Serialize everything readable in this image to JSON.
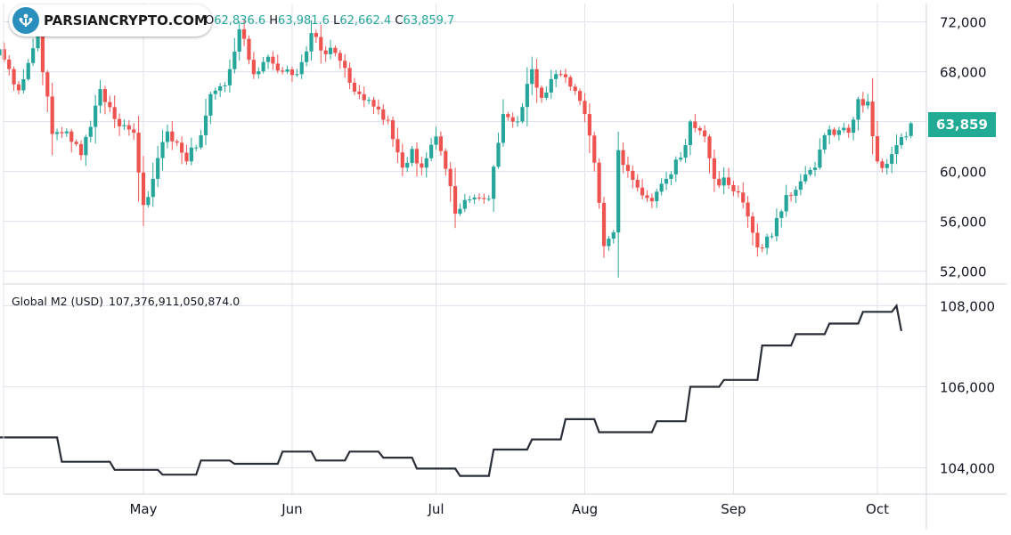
{
  "watermark": {
    "text": "PARSIANCRYPTO.COM"
  },
  "ohlc": {
    "open_label": "O",
    "open": "62,836.6",
    "high_label": "H",
    "high": "63,981.6",
    "low_label": "L",
    "low": "62,662.4",
    "close_label": "C",
    "close": "63,859.7"
  },
  "last_price_tag": "63,859",
  "m2_legend": {
    "name": "Global M2 (USD)",
    "value": "107,376,911,050,874.0"
  },
  "colors": {
    "up": "#26a69a",
    "down": "#ef5350",
    "m2_line": "#2a2e39",
    "grid": "#e0e3eb",
    "price_tag": "#22ab94"
  },
  "chart_data": [
    {
      "type": "candlestick",
      "x_tick_labels": [
        "May",
        "Jun",
        "Jul",
        "Aug",
        "Sep",
        "Oct"
      ],
      "y_tick_labels": [
        "72,000",
        "68,000",
        "64,000",
        "60,000",
        "56,000",
        "52,000"
      ],
      "ylim": [
        51000,
        74000
      ],
      "grid": true,
      "keypoints": [
        [
          "Apr 01",
          69800
        ],
        [
          "Apr 05",
          66500
        ],
        [
          "Apr 09",
          71000
        ],
        [
          "Apr 12",
          63000
        ],
        [
          "Apr 15",
          63200
        ],
        [
          "Apr 18",
          61300
        ],
        [
          "Apr 22",
          66600
        ],
        [
          "Apr 25",
          64200
        ],
        [
          "Apr 29",
          63100
        ],
        [
          "May 01",
          57300
        ],
        [
          "May 03",
          59400
        ],
        [
          "May 06",
          63200
        ],
        [
          "May 08",
          62300
        ],
        [
          "May 10",
          60800
        ],
        [
          "May 13",
          62900
        ],
        [
          "May 15",
          66200
        ],
        [
          "May 18",
          66900
        ],
        [
          "May 21",
          71400
        ],
        [
          "May 24",
          67800
        ],
        [
          "May 27",
          69200
        ],
        [
          "May 30",
          68000
        ],
        [
          "Jun 02",
          67800
        ],
        [
          "Jun 05",
          71100
        ],
        [
          "Jun 07",
          69700
        ],
        [
          "Jun 10",
          69500
        ],
        [
          "Jun 12",
          68300
        ],
        [
          "Jun 14",
          66400
        ],
        [
          "Jun 18",
          65200
        ],
        [
          "Jun 21",
          64100
        ],
        [
          "Jun 24",
          60300
        ],
        [
          "Jun 26",
          61800
        ],
        [
          "Jun 28",
          60300
        ],
        [
          "Jul 01",
          62800
        ],
        [
          "Jul 03",
          60200
        ],
        [
          "Jul 05",
          56600
        ],
        [
          "Jul 07",
          57700
        ],
        [
          "Jul 09",
          57900
        ],
        [
          "Jul 12",
          57800
        ],
        [
          "Jul 15",
          64600
        ],
        [
          "Jul 18",
          64000
        ],
        [
          "Jul 21",
          68200
        ],
        [
          "Jul 23",
          65900
        ],
        [
          "Jul 26",
          67800
        ],
        [
          "Jul 29",
          66800
        ],
        [
          "Aug 01",
          64600
        ],
        [
          "Aug 03",
          60700
        ],
        [
          "Aug 05",
          54000
        ],
        [
          "Aug 07",
          55100
        ],
        [
          "Aug 08",
          61700
        ],
        [
          "Aug 12",
          58700
        ],
        [
          "Aug 15",
          57600
        ],
        [
          "Aug 18",
          59400
        ],
        [
          "Aug 21",
          61100
        ],
        [
          "Aug 23",
          64000
        ],
        [
          "Aug 26",
          62800
        ],
        [
          "Aug 28",
          59400
        ],
        [
          "Aug 31",
          58900
        ],
        [
          "Sep 03",
          57500
        ],
        [
          "Sep 06",
          53900
        ],
        [
          "Sep 09",
          54800
        ],
        [
          "Sep 12",
          58100
        ],
        [
          "Sep 15",
          59200
        ],
        [
          "Sep 18",
          60300
        ],
        [
          "Sep 20",
          62900
        ],
        [
          "Sep 23",
          63300
        ],
        [
          "Sep 25",
          63100
        ],
        [
          "Sep 27",
          65800
        ],
        [
          "Sep 29",
          65600
        ],
        [
          "Oct 01",
          60800
        ],
        [
          "Oct 03",
          60600
        ],
        [
          "Oct 05",
          62100
        ],
        [
          "Oct 07",
          62800
        ],
        [
          "Oct 08",
          63860
        ]
      ],
      "last": {
        "open": 62836.6,
        "high": 63981.6,
        "low": 62662.4,
        "close": 63859.7
      }
    },
    {
      "type": "line",
      "series": [
        {
          "name": "Global M2 (USD)",
          "x": [
            "Apr 01",
            "Apr 13",
            "Apr 14",
            "Apr 24",
            "Apr 25",
            "May 04",
            "May 05",
            "May 12",
            "May 13",
            "May 19",
            "May 20",
            "May 29",
            "May 30",
            "Jun 05",
            "Jun 06",
            "Jun 12",
            "Jun 13",
            "Jun 19",
            "Jun 20",
            "Jun 26",
            "Jun 27",
            "Jul 05",
            "Jul 06",
            "Jul 12",
            "Jul 13",
            "Jul 20",
            "Jul 21",
            "Jul 27",
            "Jul 28",
            "Aug 03",
            "Aug 04",
            "Aug 15",
            "Aug 16",
            "Aug 22",
            "Aug 23",
            "Aug 29",
            "Aug 30",
            "Sep 06",
            "Sep 07",
            "Sep 13",
            "Sep 14",
            "Sep 20",
            "Sep 21",
            "Sep 27",
            "Sep 28",
            "Oct 04",
            "Oct 05",
            "Oct 06"
          ],
          "values": [
            104750000000000,
            104750000000000,
            104150000000000,
            104150000000000,
            103950000000000,
            103950000000000,
            103830000000000,
            103830000000000,
            104180000000000,
            104180000000000,
            104100000000000,
            104100000000000,
            104400000000000,
            104400000000000,
            104180000000000,
            104180000000000,
            104400000000000,
            104400000000000,
            104250000000000,
            104250000000000,
            103980000000000,
            103980000000000,
            103800000000000,
            103800000000000,
            104450000000000,
            104450000000000,
            104700000000000,
            104700000000000,
            105200000000000,
            105200000000000,
            104880000000000,
            104880000000000,
            105150000000000,
            105150000000000,
            106000000000000,
            106000000000000,
            106170000000000,
            106170000000000,
            107020000000000,
            107020000000000,
            107300000000000,
            107300000000000,
            107560000000000,
            107560000000000,
            107850000000000,
            107850000000000,
            108000000000000,
            107377000000000
          ]
        }
      ],
      "y_tick_labels": [
        "108,000",
        "106,000",
        "104,000"
      ],
      "ylim": [
        103300000000000,
        108600000000000
      ],
      "grid": true
    }
  ]
}
